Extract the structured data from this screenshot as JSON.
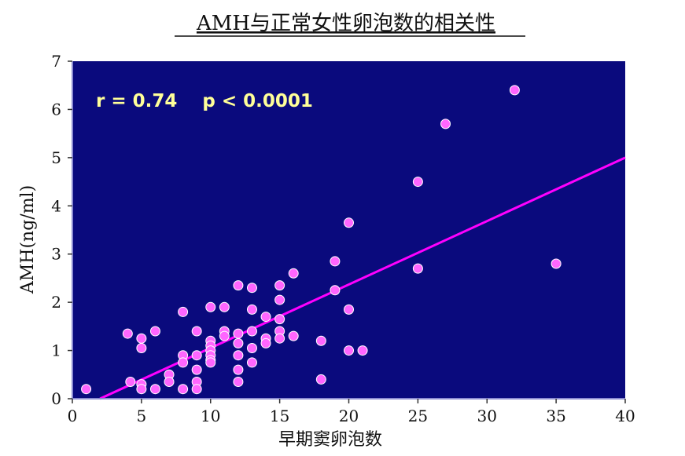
{
  "chart_data": {
    "type": "scatter",
    "title": "AMH与正常女性卵泡数的相关性",
    "xlabel": "早期窦卵泡数",
    "ylabel": "AMH(ng/ml)",
    "xlim": [
      0,
      40
    ],
    "ylim": [
      0,
      7
    ],
    "xticks": [
      "0",
      "5",
      "10",
      "15",
      "20",
      "25",
      "30",
      "35",
      "40"
    ],
    "yticks": [
      "0",
      "1",
      "2",
      "3",
      "4",
      "5",
      "6",
      "7"
    ],
    "annotation": "r = 0.74    p < 0.0001",
    "grid": false,
    "colors": {
      "plot_background": "#0a0a7d",
      "points": "#ff66ff",
      "trend_line": "#ff00ff",
      "annotation": "#ffff99"
    },
    "trend_line": {
      "x": [
        2,
        40
      ],
      "y": [
        0,
        5.0
      ]
    },
    "points": [
      {
        "x": 1,
        "y": 0.2
      },
      {
        "x": 4,
        "y": 1.35
      },
      {
        "x": 4.2,
        "y": 0.35
      },
      {
        "x": 5,
        "y": 1.25
      },
      {
        "x": 5,
        "y": 1.05
      },
      {
        "x": 5,
        "y": 0.3
      },
      {
        "x": 5,
        "y": 0.2
      },
      {
        "x": 6,
        "y": 1.4
      },
      {
        "x": 6,
        "y": 0.2
      },
      {
        "x": 7,
        "y": 0.5
      },
      {
        "x": 7,
        "y": 0.35
      },
      {
        "x": 8,
        "y": 1.8
      },
      {
        "x": 8,
        "y": 0.9
      },
      {
        "x": 8,
        "y": 0.75
      },
      {
        "x": 8,
        "y": 0.2
      },
      {
        "x": 9,
        "y": 1.4
      },
      {
        "x": 9,
        "y": 0.9
      },
      {
        "x": 9,
        "y": 0.6
      },
      {
        "x": 9,
        "y": 0.35
      },
      {
        "x": 9,
        "y": 0.2
      },
      {
        "x": 10,
        "y": 1.9
      },
      {
        "x": 10,
        "y": 1.2
      },
      {
        "x": 10,
        "y": 1.1
      },
      {
        "x": 10,
        "y": 1.0
      },
      {
        "x": 10,
        "y": 0.9
      },
      {
        "x": 10,
        "y": 0.8
      },
      {
        "x": 10,
        "y": 0.75
      },
      {
        "x": 11,
        "y": 1.9
      },
      {
        "x": 11,
        "y": 1.4
      },
      {
        "x": 11,
        "y": 1.3
      },
      {
        "x": 12,
        "y": 2.35
      },
      {
        "x": 12,
        "y": 1.35
      },
      {
        "x": 12,
        "y": 1.15
      },
      {
        "x": 12,
        "y": 0.9
      },
      {
        "x": 12,
        "y": 0.6
      },
      {
        "x": 12,
        "y": 0.35
      },
      {
        "x": 13,
        "y": 2.3
      },
      {
        "x": 13,
        "y": 1.85
      },
      {
        "x": 13,
        "y": 1.4
      },
      {
        "x": 13,
        "y": 1.05
      },
      {
        "x": 13,
        "y": 0.75
      },
      {
        "x": 14,
        "y": 1.7
      },
      {
        "x": 14,
        "y": 1.25
      },
      {
        "x": 14,
        "y": 1.15
      },
      {
        "x": 15,
        "y": 2.35
      },
      {
        "x": 15,
        "y": 2.05
      },
      {
        "x": 15,
        "y": 1.65
      },
      {
        "x": 15,
        "y": 1.4
      },
      {
        "x": 15,
        "y": 1.25
      },
      {
        "x": 16,
        "y": 2.6
      },
      {
        "x": 16,
        "y": 1.3
      },
      {
        "x": 18,
        "y": 1.2
      },
      {
        "x": 18,
        "y": 0.4
      },
      {
        "x": 19,
        "y": 2.85
      },
      {
        "x": 19,
        "y": 2.25
      },
      {
        "x": 20,
        "y": 3.65
      },
      {
        "x": 20,
        "y": 1.85
      },
      {
        "x": 20,
        "y": 1.0
      },
      {
        "x": 21,
        "y": 1.0
      },
      {
        "x": 25,
        "y": 4.5
      },
      {
        "x": 25,
        "y": 2.7
      },
      {
        "x": 27,
        "y": 5.7
      },
      {
        "x": 32,
        "y": 6.4
      },
      {
        "x": 35,
        "y": 2.8
      }
    ]
  }
}
